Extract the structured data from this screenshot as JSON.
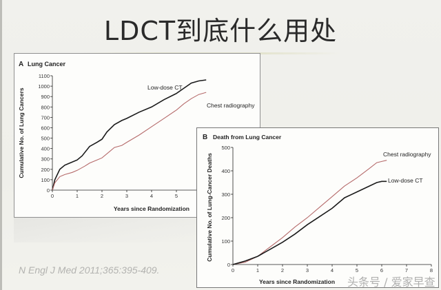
{
  "slide": {
    "title": "LDCT到底什么用处",
    "citation": "N Engl J Med 2011;365:395-409.",
    "watermark": "头条号 / 爱家早查"
  },
  "colors": {
    "low_dose_ct": "#1a1a1a",
    "chest_radiography": "#b56a6a",
    "axis": "#222222"
  },
  "chart_data": [
    {
      "panel": "A",
      "type": "line",
      "title": "Lung Cancer",
      "panel_label": "A",
      "xlabel": "Years since Randomization",
      "ylabel": "Cumulative No. of Lung Cancers",
      "xlim": [
        0,
        5.7
      ],
      "ylim": [
        0,
        1100
      ],
      "x_ticks": [
        0,
        1,
        2,
        3,
        4,
        5
      ],
      "y_ticks": [
        0,
        100,
        200,
        300,
        400,
        500,
        600,
        700,
        800,
        900,
        1000,
        1100
      ],
      "grid": false,
      "legend": "inline labels",
      "series": [
        {
          "name": "Low-dose CT",
          "x": [
            0,
            0.1,
            0.3,
            0.5,
            0.7,
            1.0,
            1.2,
            1.5,
            1.8,
            2.0,
            2.2,
            2.5,
            2.8,
            3.0,
            3.5,
            4.0,
            4.5,
            5.0,
            5.3,
            5.6,
            5.9,
            6.2
          ],
          "values": [
            0,
            100,
            200,
            240,
            260,
            290,
            330,
            420,
            460,
            490,
            560,
            630,
            670,
            690,
            750,
            800,
            870,
            930,
            980,
            1030,
            1050,
            1060
          ]
        },
        {
          "name": "Chest radiography",
          "x": [
            0,
            0.1,
            0.3,
            0.5,
            0.8,
            1.0,
            1.3,
            1.5,
            1.8,
            2.0,
            2.3,
            2.5,
            2.8,
            3.0,
            3.5,
            4.0,
            4.5,
            5.0,
            5.3,
            5.6,
            5.9,
            6.2
          ],
          "values": [
            0,
            70,
            130,
            150,
            170,
            190,
            230,
            260,
            290,
            310,
            370,
            410,
            430,
            460,
            530,
            610,
            690,
            770,
            830,
            880,
            920,
            940
          ]
        }
      ]
    },
    {
      "panel": "B",
      "type": "line",
      "title": "Death from Lung Cancer",
      "panel_label": "B",
      "xlabel": "Years since Randomization",
      "ylabel": "Cumulative No. of Lung-Cancer Deaths",
      "xlim": [
        0,
        8
      ],
      "ylim": [
        0,
        500
      ],
      "x_ticks": [
        0,
        1,
        2,
        3,
        4,
        5,
        6,
        7,
        8
      ],
      "y_ticks": [
        0,
        100,
        200,
        300,
        400,
        500
      ],
      "grid": false,
      "legend": "inline labels",
      "series": [
        {
          "name": "Chest radiography",
          "x": [
            0,
            0.5,
            1.0,
            1.5,
            2.0,
            2.5,
            3.0,
            3.5,
            4.0,
            4.5,
            5.0,
            5.5,
            5.8,
            6.0,
            6.2
          ],
          "values": [
            0,
            10,
            35,
            75,
            115,
            160,
            200,
            245,
            290,
            335,
            370,
            410,
            435,
            440,
            445
          ]
        },
        {
          "name": "Low-dose CT",
          "x": [
            0,
            0.5,
            1.0,
            1.5,
            2.0,
            2.5,
            3.0,
            3.5,
            4.0,
            4.5,
            5.0,
            5.5,
            5.8,
            6.0,
            6.2
          ],
          "values": [
            0,
            15,
            35,
            65,
            95,
            130,
            170,
            205,
            240,
            285,
            310,
            335,
            350,
            355,
            355
          ]
        }
      ]
    }
  ]
}
